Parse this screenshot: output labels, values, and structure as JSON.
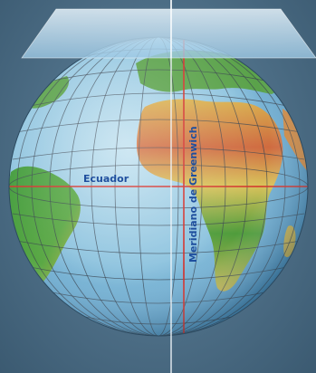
{
  "labels": {
    "equator": "Ecuador",
    "meridian": "Meridiano de Greenwich"
  },
  "colors": {
    "ocean": "#8fc4df",
    "ocean_dark": "#3f86b6",
    "land_green": "#3f9a3a",
    "land_yellow": "#d7c25a",
    "land_red": "#c9503a",
    "grid": "#3a4450",
    "reference_line": "#d3302a",
    "label_text": "#1f4f9e",
    "plane": "#c8e2f2"
  }
}
